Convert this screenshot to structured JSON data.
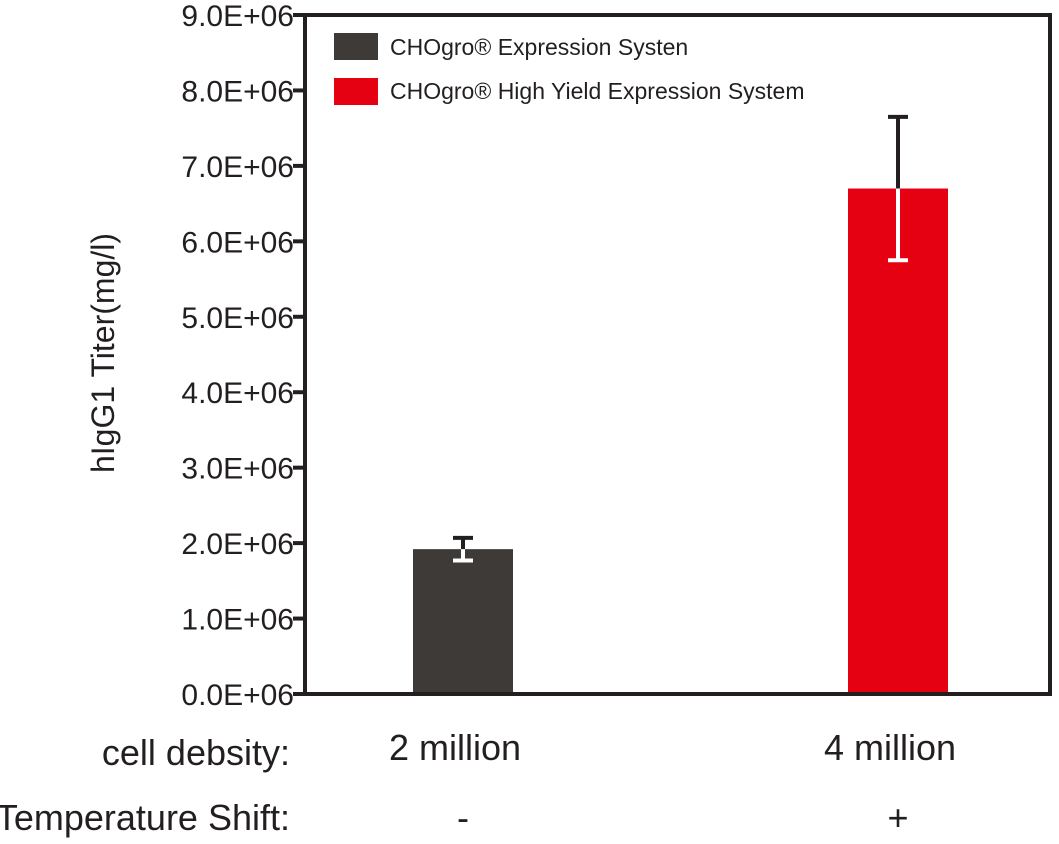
{
  "chart_data": {
    "type": "bar",
    "ylabel": "hIgG1 Titer(mg/l)",
    "ylim": [
      0,
      9000000
    ],
    "yticks": [
      0,
      1000000,
      2000000,
      3000000,
      4000000,
      5000000,
      6000000,
      7000000,
      8000000,
      9000000
    ],
    "ytick_labels": [
      "0.0E+06",
      "1.0E+06",
      "2.0E+06",
      "3.0E+06",
      "4.0E+06",
      "5.0E+06",
      "6.0E+06",
      "7.0E+06",
      "8.0E+06",
      "9.0E+06"
    ],
    "categories": [
      "2 million",
      "4 million"
    ],
    "temperature_shift": [
      "-",
      "+"
    ],
    "row_labels": {
      "cell_density": "cell debsity:",
      "temperature_shift": "Temperature Shift:"
    },
    "legend_position": "top-left",
    "series": [
      {
        "name": "CHOgro® Expression Systen",
        "color": "#3d3a38",
        "values": [
          1920000,
          null
        ],
        "errors": [
          150000,
          null
        ]
      },
      {
        "name": "CHOgro® High Yield Expression System",
        "color": "#e50012",
        "values": [
          null,
          6700000
        ],
        "errors": [
          null,
          950000
        ]
      }
    ]
  }
}
